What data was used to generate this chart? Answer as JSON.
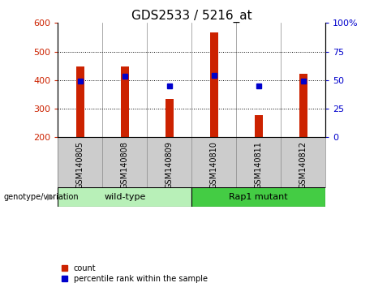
{
  "title": "GDS2533 / 5216_at",
  "samples": [
    "GSM140805",
    "GSM140808",
    "GSM140809",
    "GSM140810",
    "GSM140811",
    "GSM140812"
  ],
  "counts": [
    448,
    448,
    335,
    568,
    278,
    422
  ],
  "percentile_ranks": [
    49,
    53,
    45,
    54,
    45,
    49
  ],
  "ylim_left": [
    200,
    600
  ],
  "ylim_right": [
    0,
    100
  ],
  "yticks_left": [
    200,
    300,
    400,
    500,
    600
  ],
  "yticks_right": [
    0,
    25,
    50,
    75,
    100
  ],
  "bar_color": "#cc2200",
  "marker_color": "#0000cc",
  "bar_width": 0.18,
  "group_info": [
    {
      "label": "wild-type",
      "start": 0,
      "end": 2,
      "color": "#b8f0b8"
    },
    {
      "label": "Rap1 mutant",
      "start": 3,
      "end": 5,
      "color": "#44cc44"
    }
  ],
  "legend_count_label": "count",
  "legend_percentile_label": "percentile rank within the sample",
  "bg_color": "#ffffff",
  "label_area_color": "#cccccc",
  "title_fontsize": 11,
  "tick_fontsize": 8,
  "label_fontsize": 7,
  "group_fontsize": 8,
  "legend_fontsize": 7
}
